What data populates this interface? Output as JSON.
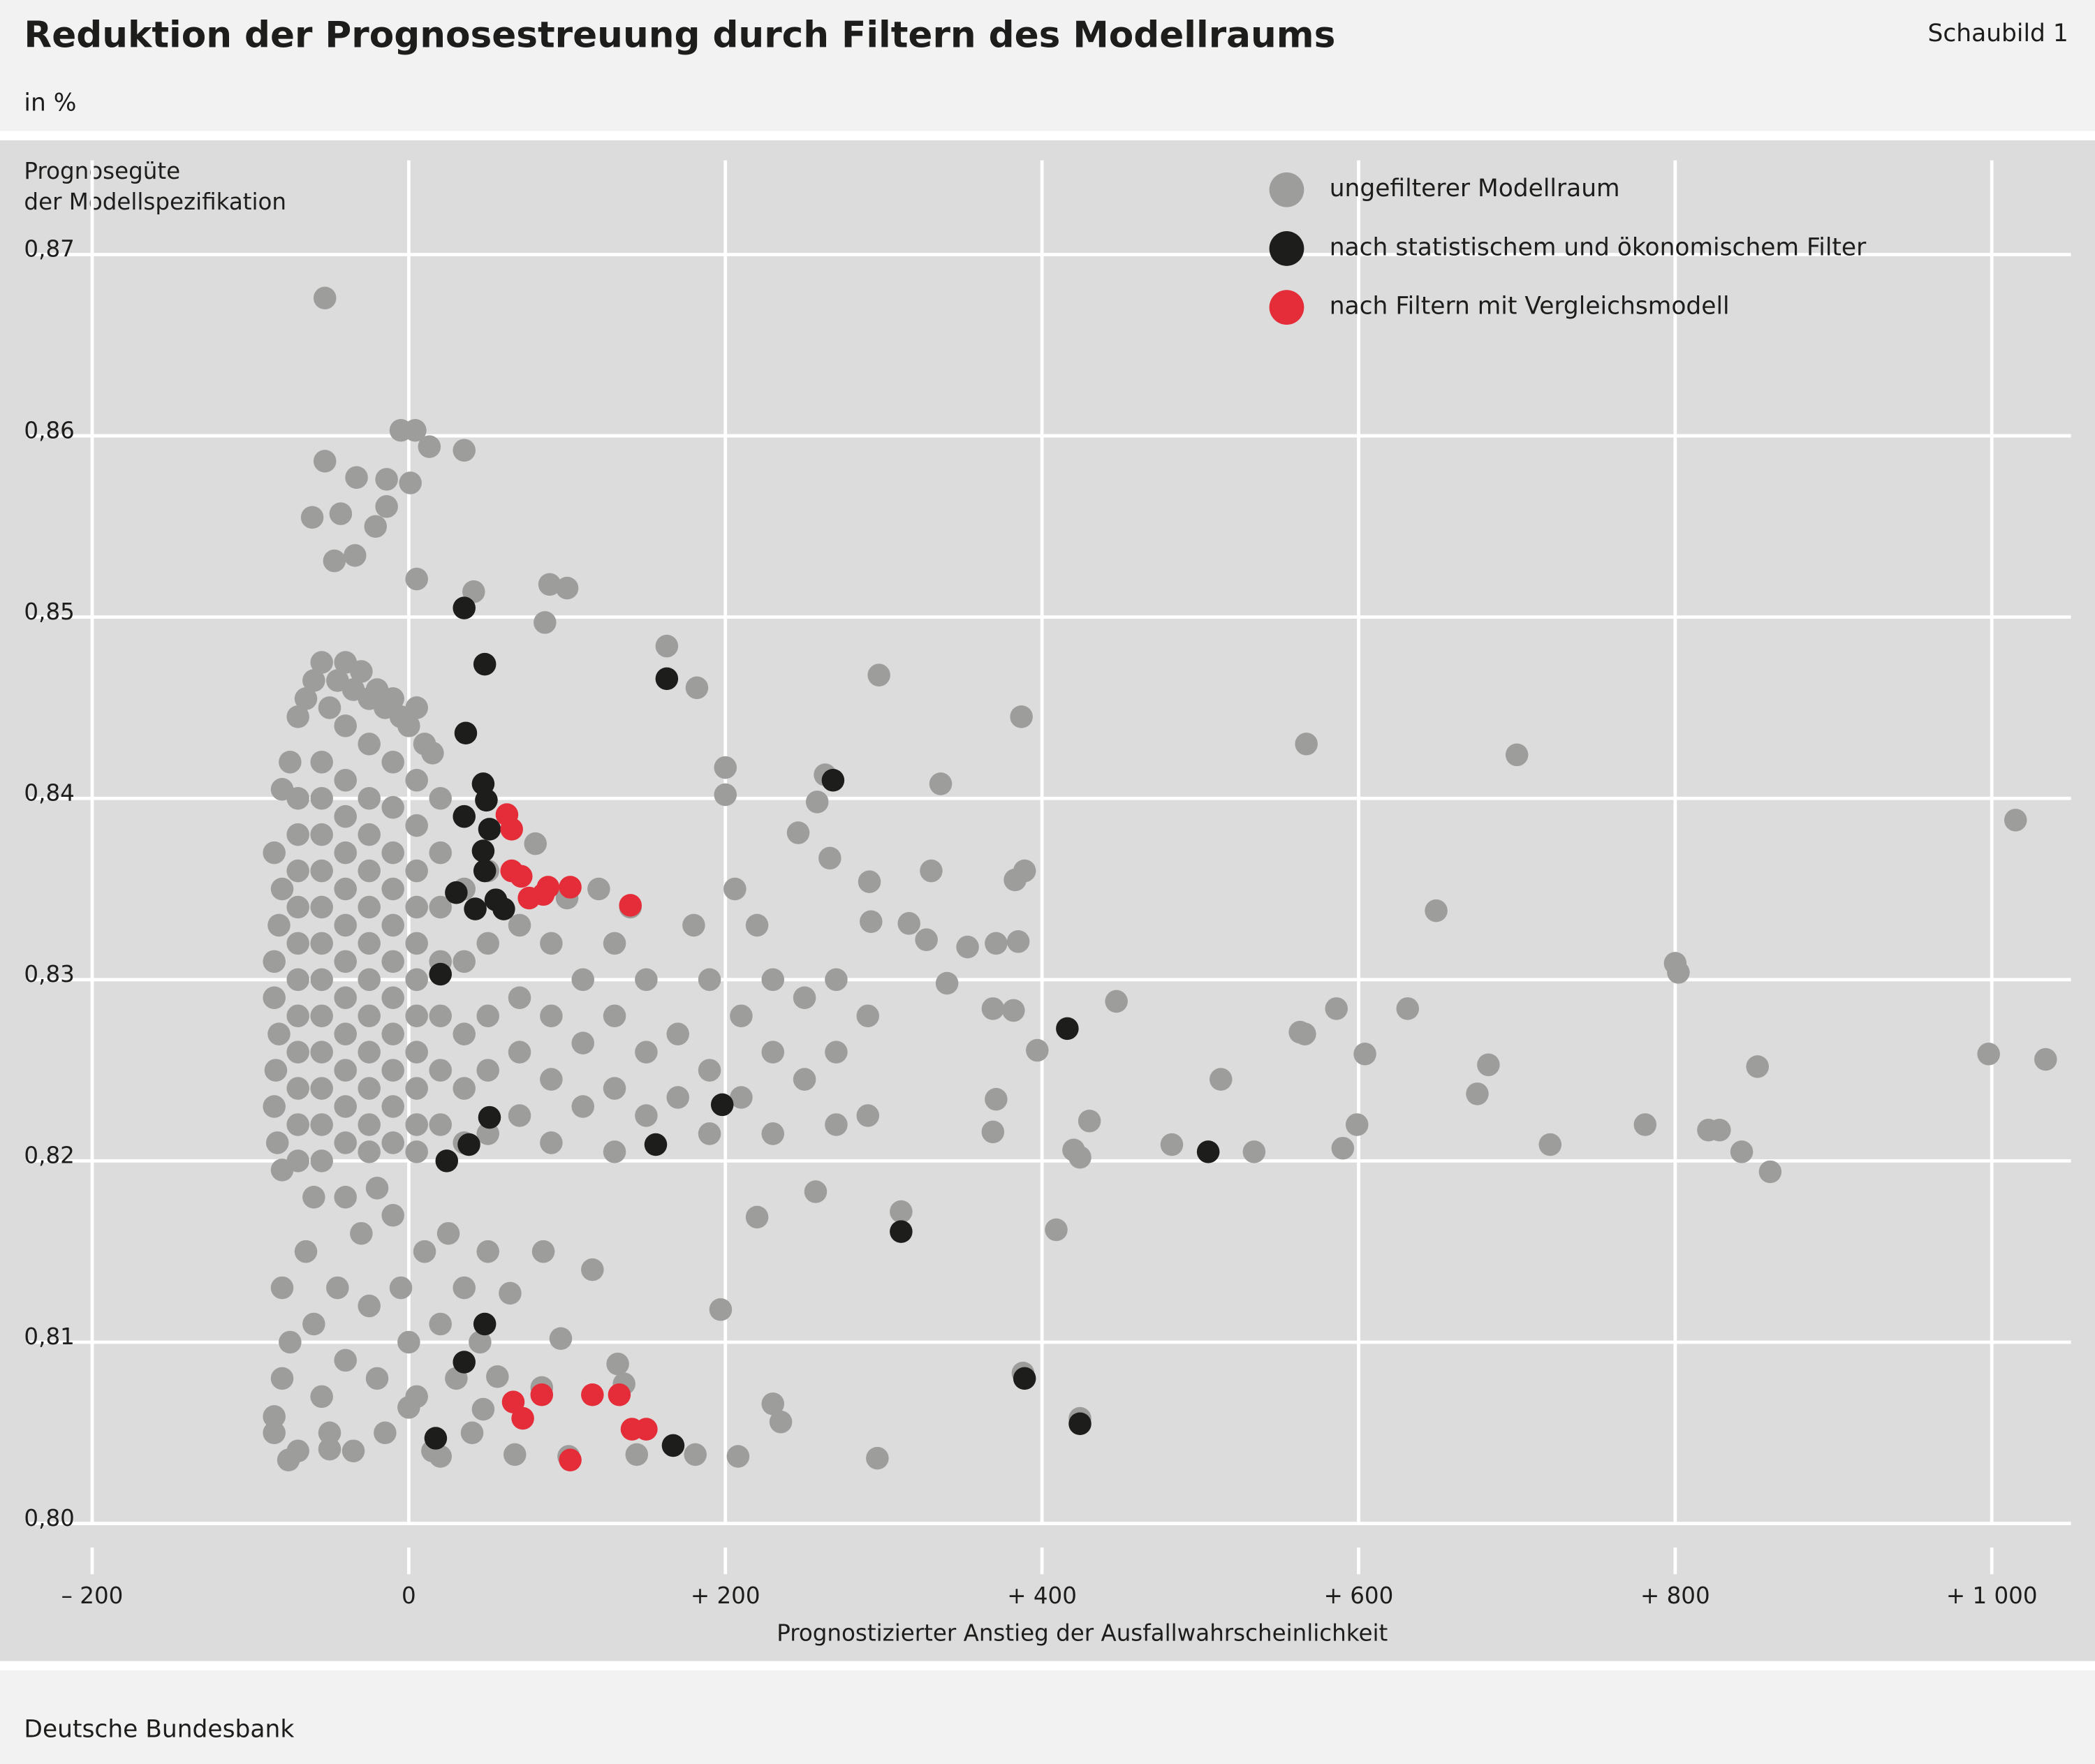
{
  "chart_data": {
    "type": "scatter",
    "title": "Reduktion der Prognosestreuung durch Filtern des Modellraums",
    "figure_label": "Schaubild 1",
    "subtitle": "in %",
    "ylabel": [
      "Prognosegüte",
      "der Modellspezifikation"
    ],
    "xlabel": "Prognostizierter Anstieg der Ausfallwahrscheinlichkeit",
    "source": "Deutsche Bundesbank",
    "legend": "upper right",
    "grid": true,
    "xlim": [
      -240,
      1050
    ],
    "ylim": [
      0.8,
      0.8763
    ],
    "xticks": [
      {
        "value": -200,
        "label": "– 200"
      },
      0,
      {
        "value": 200,
        "label": "+ 200"
      },
      {
        "value": 400,
        "label": "+ 400"
      },
      {
        "value": 600,
        "label": "+ 600"
      },
      {
        "value": 800,
        "label": "+ 800"
      },
      {
        "value": 1000,
        "label": "+ 1 000"
      }
    ],
    "yticks": [
      {
        "value": 0.8,
        "label": "0,80"
      },
      {
        "value": 0.81,
        "label": "0,81"
      },
      {
        "value": 0.82,
        "label": "0,82"
      },
      {
        "value": 0.83,
        "label": "0,83"
      },
      {
        "value": 0.84,
        "label": "0,84"
      },
      {
        "value": 0.85,
        "label": "0,85"
      },
      {
        "value": 0.86,
        "label": "0,86"
      },
      {
        "value": 0.87,
        "label": "0,87"
      }
    ],
    "series": [
      {
        "name": "ungefilterer Modellraum",
        "color": "#9d9d9c",
        "x": [
          -53,
          -5,
          4,
          35,
          13,
          -53,
          -33,
          -14,
          1,
          -61,
          -43,
          -14,
          -21,
          -47,
          -34,
          5,
          41,
          89,
          100,
          86,
          163,
          182,
          297,
          387,
          567,
          700,
          200,
          200,
          258,
          336,
          263,
          1015,
          246,
          266,
          330,
          389,
          383,
          291,
          206,
          649,
          292,
          316,
          327,
          353,
          371,
          385,
          800,
          802,
          340,
          447,
          369,
          382,
          586,
          631,
          563,
          566,
          397,
          604,
          682,
          998,
          1034,
          852,
          513,
          371,
          675,
          430,
          599,
          781,
          821,
          828,
          369,
          482,
          721,
          420,
          424,
          534,
          590,
          842,
          860,
          257,
          311,
          220,
          409,
          116,
          197,
          96,
          388,
          230,
          235,
          424,
          296,
          208,
          181,
          144,
          67,
          101,
          132,
          136,
          84,
          56,
          0,
          -50,
          -76,
          -85,
          85,
          64,
          47,
          20,
          -80,
          -75,
          -70,
          -65,
          -60,
          -55,
          -50,
          -45,
          -40,
          -35,
          -30,
          -25,
          -20,
          -15,
          -10,
          -5,
          0,
          5,
          10,
          15,
          -85,
          -80,
          -82,
          -85,
          -85,
          -82,
          -84,
          -85,
          -83,
          -80,
          -70,
          -70,
          -70,
          -70,
          -70,
          -70,
          -70,
          -70,
          -70,
          -70,
          -70,
          -55,
          -55,
          -55,
          -55,
          -55,
          -55,
          -55,
          -55,
          -55,
          -55,
          -55,
          -55,
          -40,
          -40,
          -40,
          -40,
          -40,
          -40,
          -40,
          -40,
          -40,
          -40,
          -40,
          -40,
          -25,
          -25,
          -25,
          -25,
          -25,
          -25,
          -25,
          -25,
          -25,
          -25,
          -25,
          -25,
          -10,
          -10,
          -10,
          -10,
          -10,
          -10,
          -10,
          -10,
          -10,
          -10,
          -10,
          5,
          5,
          5,
          5,
          5,
          5,
          5,
          5,
          5,
          5,
          5,
          20,
          20,
          20,
          20,
          20,
          20,
          20,
          35,
          35,
          35,
          35,
          35,
          35,
          50,
          50,
          50,
          50,
          50,
          70,
          70,
          70,
          70,
          90,
          90,
          90,
          90,
          110,
          110,
          110,
          130,
          130,
          130,
          130,
          150,
          150,
          150,
          170,
          170,
          190,
          190,
          190,
          210,
          210,
          230,
          230,
          230,
          250,
          250,
          270,
          270,
          270,
          290,
          290,
          120,
          140,
          100,
          80,
          180,
          220,
          -80,
          -75,
          -80,
          -85,
          -70,
          -65,
          -60,
          -55,
          -50,
          -45,
          -40,
          -35,
          -30,
          -25,
          -20,
          -15,
          -10,
          -5,
          0,
          5,
          10,
          15,
          20,
          25,
          30,
          35,
          40,
          45,
          50,
          -60,
          -40,
          -20
        ],
        "values": [
          0.8676,
          0.8603,
          0.8603,
          0.8592,
          0.8594,
          0.8586,
          0.8577,
          0.8576,
          0.8574,
          0.8555,
          0.8557,
          0.8561,
          0.855,
          0.8531,
          0.8534,
          0.8521,
          0.8514,
          0.8518,
          0.8516,
          0.8497,
          0.8484,
          0.8461,
          0.8468,
          0.8445,
          0.843,
          0.8424,
          0.8417,
          0.8402,
          0.8398,
          0.8408,
          0.8413,
          0.8388,
          0.8381,
          0.8367,
          0.836,
          0.836,
          0.8355,
          0.8354,
          0.835,
          0.8338,
          0.8332,
          0.8331,
          0.8322,
          0.8318,
          0.832,
          0.8321,
          0.8309,
          0.8304,
          0.8298,
          0.8288,
          0.8284,
          0.8283,
          0.8284,
          0.8284,
          0.8271,
          0.827,
          0.8261,
          0.8259,
          0.8253,
          0.8259,
          0.8256,
          0.8252,
          0.8245,
          0.8234,
          0.8237,
          0.8222,
          0.822,
          0.822,
          0.8217,
          0.8217,
          0.8216,
          0.8209,
          0.8209,
          0.8206,
          0.8202,
          0.8205,
          0.8207,
          0.8205,
          0.8194,
          0.8183,
          0.8172,
          0.8169,
          0.8162,
          0.814,
          0.8118,
          0.8102,
          0.8083,
          0.8066,
          0.8056,
          0.8058,
          0.8036,
          0.8037,
          0.8038,
          0.8038,
          0.8038,
          0.8037,
          0.8088,
          0.8077,
          0.8075,
          0.8081,
          0.8064,
          0.8041,
          0.8035,
          0.8059,
          0.815,
          0.8127,
          0.8063,
          0.8037,
          0.8405,
          0.842,
          0.8445,
          0.8455,
          0.8465,
          0.8475,
          0.845,
          0.8465,
          0.8475,
          0.846,
          0.847,
          0.8455,
          0.846,
          0.845,
          0.8455,
          0.8445,
          0.844,
          0.845,
          0.843,
          0.8425,
          0.837,
          0.835,
          0.833,
          0.831,
          0.829,
          0.827,
          0.825,
          0.823,
          0.821,
          0.8195,
          0.84,
          0.838,
          0.836,
          0.834,
          0.832,
          0.83,
          0.828,
          0.826,
          0.824,
          0.822,
          0.82,
          0.842,
          0.84,
          0.838,
          0.836,
          0.834,
          0.832,
          0.83,
          0.828,
          0.826,
          0.824,
          0.822,
          0.82,
          0.844,
          0.841,
          0.839,
          0.837,
          0.835,
          0.833,
          0.831,
          0.829,
          0.827,
          0.825,
          0.823,
          0.821,
          0.843,
          0.84,
          0.838,
          0.836,
          0.834,
          0.832,
          0.83,
          0.828,
          0.826,
          0.824,
          0.822,
          0.8205,
          0.842,
          0.8395,
          0.837,
          0.835,
          0.833,
          0.831,
          0.829,
          0.827,
          0.825,
          0.823,
          0.821,
          0.841,
          0.8385,
          0.836,
          0.834,
          0.832,
          0.83,
          0.828,
          0.826,
          0.824,
          0.822,
          0.8205,
          0.84,
          0.837,
          0.834,
          0.831,
          0.828,
          0.825,
          0.822,
          0.839,
          0.835,
          0.831,
          0.827,
          0.824,
          0.821,
          0.836,
          0.832,
          0.828,
          0.825,
          0.8215,
          0.833,
          0.829,
          0.826,
          0.8225,
          0.832,
          0.828,
          0.8245,
          0.821,
          0.83,
          0.8265,
          0.823,
          0.832,
          0.828,
          0.824,
          0.8205,
          0.83,
          0.826,
          0.8225,
          0.827,
          0.8235,
          0.83,
          0.825,
          0.8215,
          0.828,
          0.8235,
          0.83,
          0.826,
          0.8215,
          0.829,
          0.8245,
          0.83,
          0.826,
          0.822,
          0.828,
          0.8225,
          0.835,
          0.834,
          0.8345,
          0.8375,
          0.833,
          0.833,
          0.813,
          0.81,
          0.808,
          0.805,
          0.804,
          0.815,
          0.811,
          0.807,
          0.805,
          0.813,
          0.809,
          0.804,
          0.816,
          0.812,
          0.808,
          0.805,
          0.817,
          0.813,
          0.81,
          0.807,
          0.815,
          0.804,
          0.811,
          0.816,
          0.808,
          0.813,
          0.805,
          0.81,
          0.815,
          0.818,
          0.818,
          0.8185
        ]
      },
      {
        "name": "nach statistischem und ökonomischem Filter",
        "color": "#1d1d1b",
        "x": [
          35,
          48,
          163,
          36,
          268,
          47,
          49,
          35,
          51,
          47,
          48,
          30,
          42,
          55,
          60,
          20,
          416,
          198,
          51,
          38,
          156,
          24,
          505,
          311,
          48,
          35,
          389,
          424,
          17,
          167
        ],
        "values": [
          0.8505,
          0.8474,
          0.8466,
          0.8436,
          0.841,
          0.8408,
          0.8399,
          0.839,
          0.8383,
          0.8371,
          0.836,
          0.8348,
          0.8339,
          0.8344,
          0.8339,
          0.8303,
          0.8273,
          0.8231,
          0.8224,
          0.8209,
          0.8209,
          0.82,
          0.8205,
          0.8161,
          0.811,
          0.8089,
          0.808,
          0.8055,
          0.8047,
          0.8043
        ]
      },
      {
        "name": "nach Filtern mit Vergleichsmodell",
        "color": "#e52d39",
        "x": [
          62,
          65,
          65,
          71,
          76,
          85,
          88,
          102,
          140,
          66,
          72,
          84,
          116,
          133,
          141,
          150,
          102
        ],
        "values": [
          0.8391,
          0.8383,
          0.836,
          0.8357,
          0.8345,
          0.8347,
          0.8351,
          0.8351,
          0.8341,
          0.8067,
          0.8058,
          0.8071,
          0.8071,
          0.8071,
          0.8052,
          0.8052,
          0.8035
        ]
      }
    ]
  }
}
